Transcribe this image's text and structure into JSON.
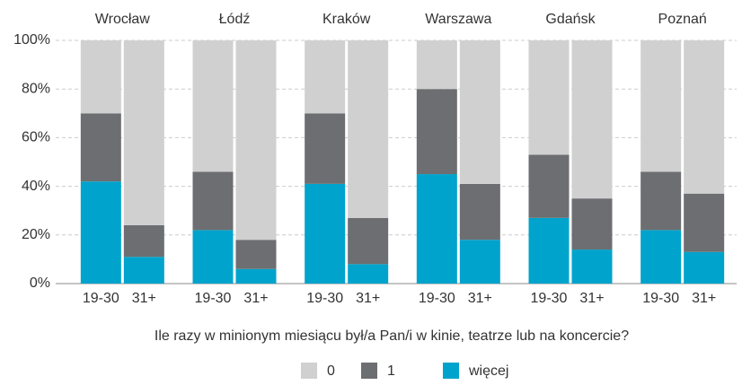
{
  "chart_data": {
    "type": "stacked_bar",
    "groups": [
      "Wrocław",
      "Łódź",
      "Kraków",
      "Warszawa",
      "Gdańsk",
      "Poznań"
    ],
    "categories": [
      "19-30",
      "31+",
      "19-30",
      "31+",
      "19-30",
      "31+",
      "19-30",
      "31+",
      "19-30",
      "31+",
      "19-30",
      "31+"
    ],
    "x_label": "Ile razy w minionym miesiącu był/a Pan/i w kinie, teatrze lub na koncercie?",
    "series": [
      {
        "name": "0",
        "color": "#d0d0d0",
        "values": [
          30,
          76,
          54,
          82,
          30,
          73,
          20,
          59,
          47,
          65,
          54,
          63
        ]
      },
      {
        "name": "1",
        "color": "#6d6e71",
        "values": [
          28,
          13,
          24,
          12,
          29,
          19,
          35,
          23,
          26,
          21,
          24,
          24
        ]
      },
      {
        "name": "więcej",
        "color": "#00a3cc",
        "values": [
          42,
          11,
          22,
          6,
          41,
          8,
          45,
          18,
          27,
          14,
          22,
          13
        ]
      }
    ],
    "ylim": [
      0,
      100
    ],
    "yticks": [
      {
        "value": 0,
        "label": "0%"
      },
      {
        "value": 20,
        "label": "20%"
      },
      {
        "value": 40,
        "label": "40%"
      },
      {
        "value": 60,
        "label": "60%"
      },
      {
        "value": 80,
        "label": "80%"
      },
      {
        "value": 100,
        "label": "100%"
      }
    ],
    "grid": true
  }
}
